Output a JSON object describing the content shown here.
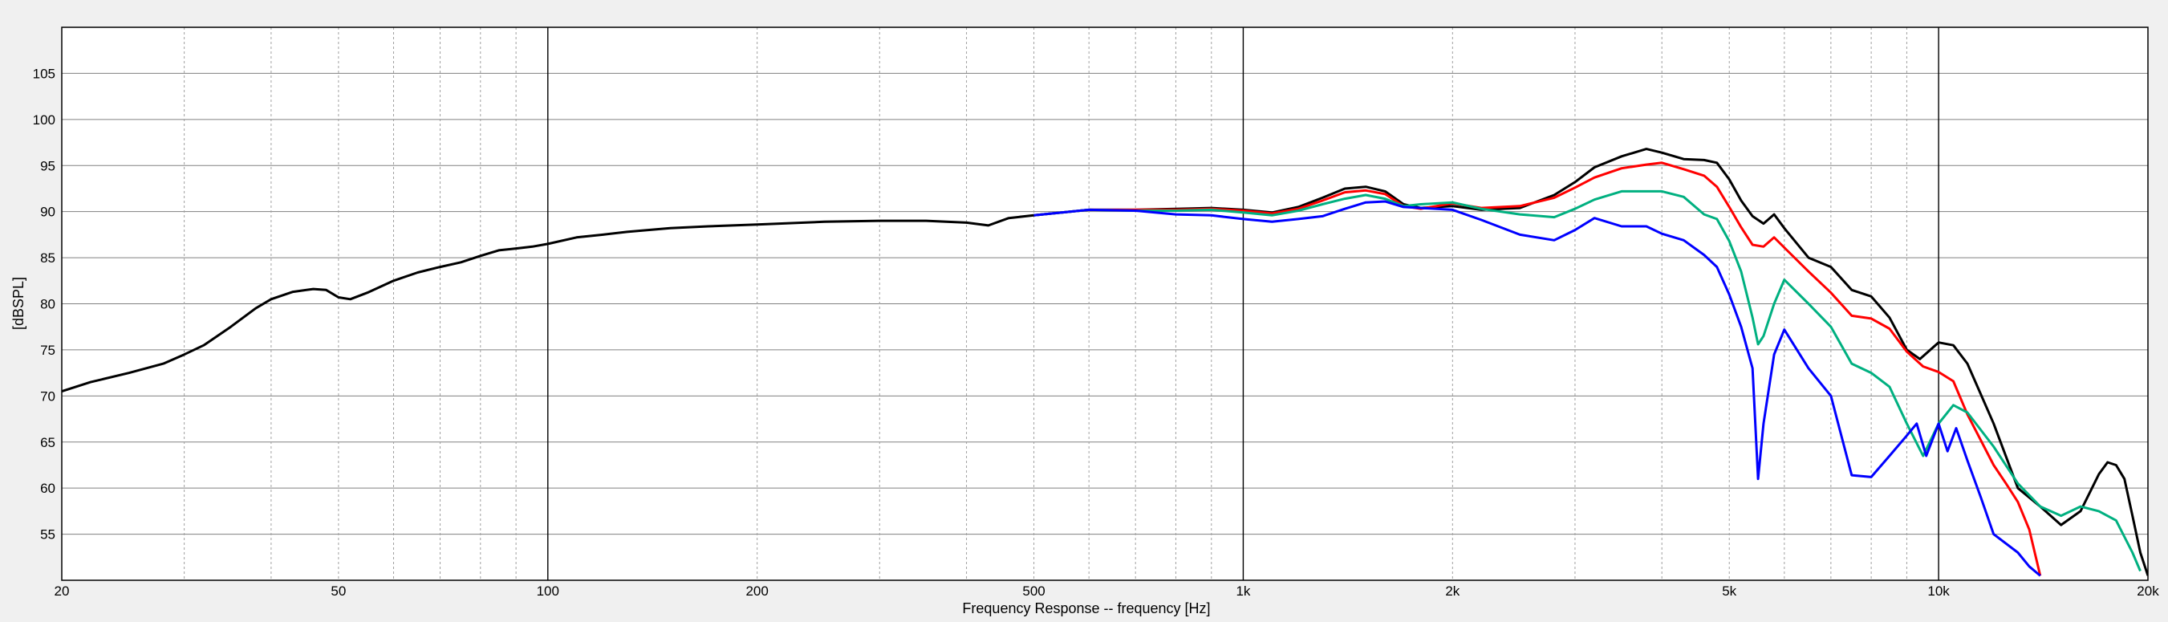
{
  "chart_data": {
    "type": "line",
    "xlabel": "Frequency Response -- frequency [Hz]",
    "ylabel": "[dBSPL]",
    "x_scale": "log",
    "xlim": [
      20,
      20000
    ],
    "ylim": [
      50,
      110
    ],
    "grid": true,
    "x_ticks": [
      {
        "value": 20,
        "label": "20"
      },
      {
        "value": 50,
        "label": "50"
      },
      {
        "value": 100,
        "label": "100"
      },
      {
        "value": 200,
        "label": "200"
      },
      {
        "value": 500,
        "label": "500"
      },
      {
        "value": 1000,
        "label": "1k"
      },
      {
        "value": 2000,
        "label": "2k"
      },
      {
        "value": 5000,
        "label": "5k"
      },
      {
        "value": 10000,
        "label": "10k"
      },
      {
        "value": 20000,
        "label": "20k"
      }
    ],
    "y_ticks": [
      55,
      60,
      65,
      70,
      75,
      80,
      85,
      90,
      95,
      100,
      105
    ],
    "series": [
      {
        "color": "#000000",
        "points": [
          [
            20,
            70.5
          ],
          [
            22,
            71.5
          ],
          [
            25,
            72.5
          ],
          [
            28,
            73.5
          ],
          [
            30,
            74.5
          ],
          [
            32,
            75.5
          ],
          [
            35,
            77.5
          ],
          [
            38,
            79.5
          ],
          [
            40,
            80.5
          ],
          [
            43,
            81.3
          ],
          [
            46,
            81.6
          ],
          [
            48,
            81.5
          ],
          [
            50,
            80.7
          ],
          [
            52,
            80.5
          ],
          [
            55,
            81.2
          ],
          [
            60,
            82.5
          ],
          [
            65,
            83.4
          ],
          [
            70,
            84
          ],
          [
            75,
            84.5
          ],
          [
            80,
            85.2
          ],
          [
            85,
            85.8
          ],
          [
            90,
            86
          ],
          [
            95,
            86.2
          ],
          [
            100,
            86.5
          ],
          [
            110,
            87.2
          ],
          [
            120,
            87.5
          ],
          [
            130,
            87.8
          ],
          [
            150,
            88.2
          ],
          [
            170,
            88.4
          ],
          [
            200,
            88.6
          ],
          [
            250,
            88.9
          ],
          [
            300,
            89
          ],
          [
            350,
            89
          ],
          [
            400,
            88.8
          ],
          [
            430,
            88.5
          ],
          [
            460,
            89.3
          ],
          [
            500,
            89.6
          ],
          [
            600,
            90.2
          ],
          [
            700,
            90.2
          ],
          [
            800,
            90.3
          ],
          [
            900,
            90.4
          ],
          [
            1000,
            90.2
          ],
          [
            1100,
            89.9
          ],
          [
            1200,
            90.5
          ],
          [
            1300,
            91.5
          ],
          [
            1400,
            92.5
          ],
          [
            1500,
            92.7
          ],
          [
            1600,
            92.2
          ],
          [
            1700,
            90.8
          ],
          [
            1800,
            90.4
          ],
          [
            2000,
            90.6
          ],
          [
            2200,
            90.2
          ],
          [
            2500,
            90.4
          ],
          [
            2800,
            91.8
          ],
          [
            3000,
            93.2
          ],
          [
            3200,
            94.8
          ],
          [
            3500,
            96
          ],
          [
            3800,
            96.8
          ],
          [
            4000,
            96.4
          ],
          [
            4300,
            95.7
          ],
          [
            4600,
            95.6
          ],
          [
            4800,
            95.3
          ],
          [
            5000,
            93.5
          ],
          [
            5200,
            91.2
          ],
          [
            5400,
            89.5
          ],
          [
            5600,
            88.7
          ],
          [
            5800,
            89.7
          ],
          [
            6000,
            88.2
          ],
          [
            6500,
            85
          ],
          [
            7000,
            84
          ],
          [
            7500,
            81.5
          ],
          [
            8000,
            80.8
          ],
          [
            8500,
            78.5
          ],
          [
            9000,
            75
          ],
          [
            9400,
            74
          ],
          [
            10000,
            75.8
          ],
          [
            10500,
            75.5
          ],
          [
            11000,
            73.5
          ],
          [
            12000,
            67
          ],
          [
            13000,
            60
          ],
          [
            14000,
            58
          ],
          [
            15000,
            56
          ],
          [
            16000,
            57.5
          ],
          [
            17000,
            61.5
          ],
          [
            17500,
            62.8
          ],
          [
            18000,
            62.5
          ],
          [
            18500,
            61
          ],
          [
            19000,
            57
          ],
          [
            19500,
            53
          ],
          [
            20000,
            50.5
          ]
        ]
      },
      {
        "color": "#ff0000",
        "points": [
          [
            500,
            89.6
          ],
          [
            600,
            90.2
          ],
          [
            700,
            90.2
          ],
          [
            800,
            90.2
          ],
          [
            900,
            90.3
          ],
          [
            1000,
            90.1
          ],
          [
            1100,
            89.8
          ],
          [
            1200,
            90.3
          ],
          [
            1300,
            91.2
          ],
          [
            1400,
            92.1
          ],
          [
            1500,
            92.3
          ],
          [
            1600,
            91.9
          ],
          [
            1700,
            90.6
          ],
          [
            1800,
            90.3
          ],
          [
            2000,
            90.9
          ],
          [
            2200,
            90.4
          ],
          [
            2500,
            90.6
          ],
          [
            2800,
            91.5
          ],
          [
            3000,
            92.6
          ],
          [
            3200,
            93.7
          ],
          [
            3500,
            94.7
          ],
          [
            3800,
            95.1
          ],
          [
            4000,
            95.3
          ],
          [
            4300,
            94.6
          ],
          [
            4600,
            93.9
          ],
          [
            4800,
            92.7
          ],
          [
            5000,
            90.5
          ],
          [
            5200,
            88.3
          ],
          [
            5400,
            86.4
          ],
          [
            5600,
            86.2
          ],
          [
            5800,
            87.2
          ],
          [
            6000,
            86.1
          ],
          [
            6500,
            83.5
          ],
          [
            7000,
            81.2
          ],
          [
            7500,
            78.7
          ],
          [
            8000,
            78.4
          ],
          [
            8500,
            77.3
          ],
          [
            9000,
            74.8
          ],
          [
            9500,
            73.2
          ],
          [
            10000,
            72.6
          ],
          [
            10500,
            71.6
          ],
          [
            11000,
            68
          ],
          [
            12000,
            62.5
          ],
          [
            12500,
            60.5
          ],
          [
            13000,
            58.5
          ],
          [
            13500,
            55.5
          ],
          [
            14000,
            50.5
          ]
        ]
      },
      {
        "color": "#00b080",
        "points": [
          [
            500,
            89.6
          ],
          [
            600,
            90.2
          ],
          [
            700,
            90.1
          ],
          [
            800,
            90.1
          ],
          [
            900,
            90.2
          ],
          [
            1000,
            89.9
          ],
          [
            1100,
            89.6
          ],
          [
            1200,
            90.1
          ],
          [
            1300,
            90.8
          ],
          [
            1400,
            91.4
          ],
          [
            1500,
            91.8
          ],
          [
            1600,
            91.4
          ],
          [
            1700,
            90.6
          ],
          [
            1800,
            90.8
          ],
          [
            2000,
            91
          ],
          [
            2200,
            90.3
          ],
          [
            2500,
            89.7
          ],
          [
            2800,
            89.4
          ],
          [
            3000,
            90.3
          ],
          [
            3200,
            91.3
          ],
          [
            3500,
            92.2
          ],
          [
            3800,
            92.2
          ],
          [
            4000,
            92.2
          ],
          [
            4300,
            91.6
          ],
          [
            4600,
            89.7
          ],
          [
            4800,
            89.2
          ],
          [
            5000,
            86.8
          ],
          [
            5200,
            83.5
          ],
          [
            5400,
            78.5
          ],
          [
            5500,
            75.6
          ],
          [
            5600,
            76.5
          ],
          [
            5800,
            80
          ],
          [
            6000,
            82.6
          ],
          [
            6500,
            80
          ],
          [
            7000,
            77.5
          ],
          [
            7500,
            73.5
          ],
          [
            8000,
            72.5
          ],
          [
            8500,
            71
          ],
          [
            9000,
            67
          ],
          [
            9500,
            63.5
          ],
          [
            10000,
            67
          ],
          [
            10500,
            69
          ],
          [
            11000,
            68.2
          ],
          [
            12000,
            64.5
          ],
          [
            13000,
            60.5
          ],
          [
            14000,
            58
          ],
          [
            15000,
            57
          ],
          [
            16000,
            58
          ],
          [
            17000,
            57.5
          ],
          [
            18000,
            56.5
          ],
          [
            19000,
            53
          ],
          [
            19500,
            51
          ]
        ]
      },
      {
        "color": "#0000ff",
        "points": [
          [
            500,
            89.6
          ],
          [
            600,
            90.2
          ],
          [
            700,
            90.1
          ],
          [
            800,
            89.7
          ],
          [
            900,
            89.6
          ],
          [
            1000,
            89.2
          ],
          [
            1100,
            88.9
          ],
          [
            1200,
            89.2
          ],
          [
            1300,
            89.5
          ],
          [
            1400,
            90.3
          ],
          [
            1500,
            91
          ],
          [
            1600,
            91.1
          ],
          [
            1700,
            90.5
          ],
          [
            1800,
            90.4
          ],
          [
            2000,
            90.2
          ],
          [
            2200,
            89.1
          ],
          [
            2500,
            87.5
          ],
          [
            2800,
            86.9
          ],
          [
            3000,
            88
          ],
          [
            3200,
            89.3
          ],
          [
            3500,
            88.4
          ],
          [
            3800,
            88.4
          ],
          [
            4000,
            87.6
          ],
          [
            4300,
            86.9
          ],
          [
            4600,
            85.3
          ],
          [
            4800,
            84
          ],
          [
            5000,
            81
          ],
          [
            5200,
            77.5
          ],
          [
            5400,
            73
          ],
          [
            5500,
            61
          ],
          [
            5600,
            67
          ],
          [
            5800,
            74.5
          ],
          [
            6000,
            77.2
          ],
          [
            6500,
            73
          ],
          [
            7000,
            70
          ],
          [
            7500,
            61.4
          ],
          [
            8000,
            61.2
          ],
          [
            8500,
            63.5
          ],
          [
            9000,
            65.7
          ],
          [
            9300,
            67
          ],
          [
            9600,
            63.5
          ],
          [
            10000,
            67
          ],
          [
            10300,
            64
          ],
          [
            10600,
            66.5
          ],
          [
            11000,
            63
          ],
          [
            11500,
            59
          ],
          [
            12000,
            55
          ],
          [
            13000,
            53
          ],
          [
            13500,
            51.5
          ],
          [
            14000,
            50.5
          ]
        ]
      }
    ]
  }
}
